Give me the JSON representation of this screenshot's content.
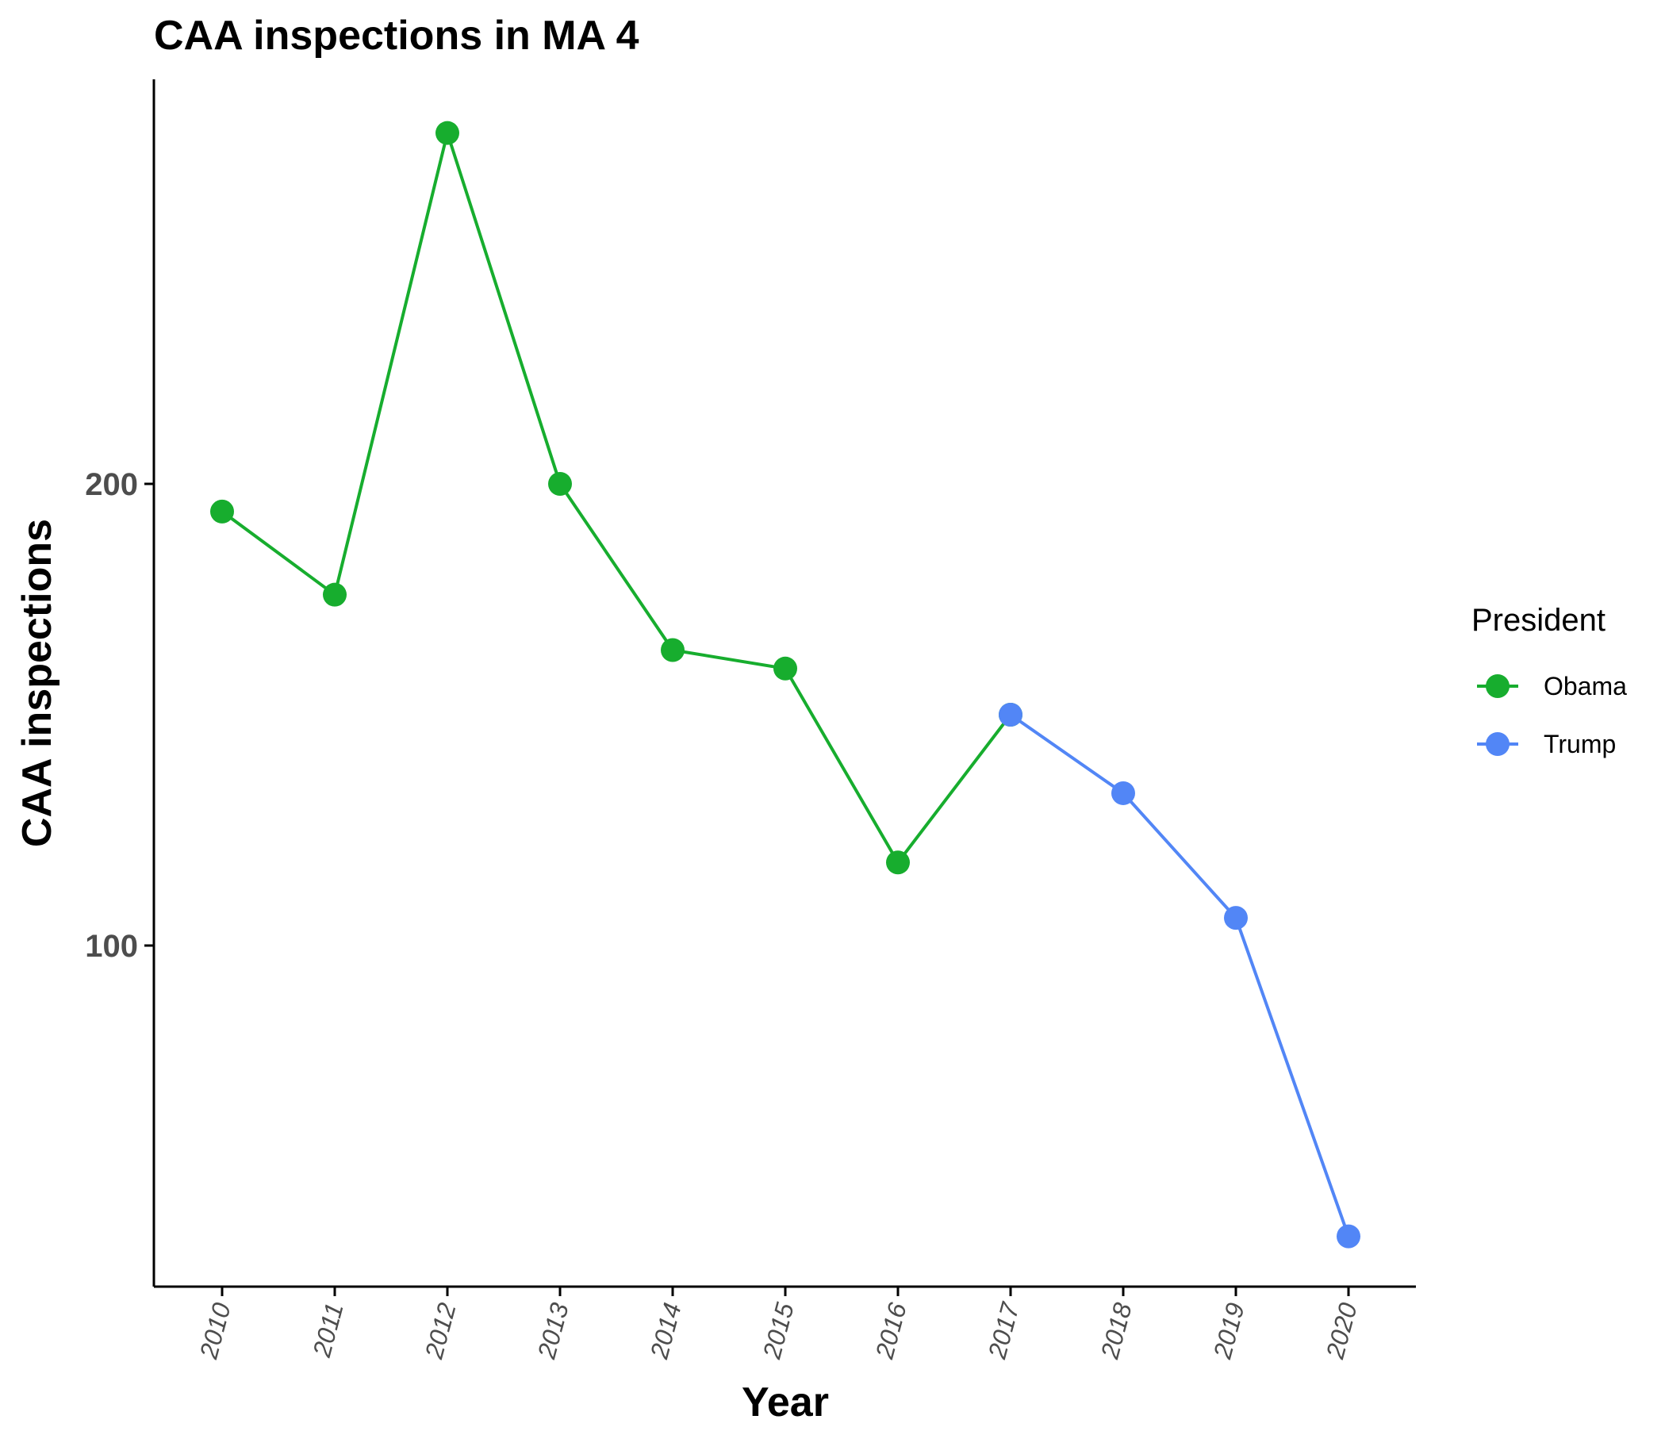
{
  "chart_data": {
    "type": "line",
    "title": "CAA inspections in MA 4",
    "xlabel": "Year",
    "ylabel": "CAA inspections",
    "categories": [
      "2010",
      "2011",
      "2012",
      "2013",
      "2014",
      "2015",
      "2016",
      "2017",
      "2018",
      "2019",
      "2020"
    ],
    "y_ticks": [
      100,
      200
    ],
    "y_tick_labels": [
      "100",
      "200"
    ],
    "ylim": [
      23,
      285
    ],
    "grid": false,
    "legend": {
      "title": "President",
      "position": "right",
      "entries": [
        {
          "label": "Obama",
          "color": "#17ad2e"
        },
        {
          "label": "Trump",
          "color": "#5286f6"
        }
      ]
    },
    "series": [
      {
        "name": "Obama",
        "color": "#17ad2e",
        "x": [
          "2010",
          "2011",
          "2012",
          "2013",
          "2014",
          "2015",
          "2016",
          "2017"
        ],
        "values": [
          194,
          176,
          276,
          200,
          164,
          160,
          118,
          150
        ]
      },
      {
        "name": "Trump",
        "color": "#5286f6",
        "x": [
          "2017",
          "2018",
          "2019",
          "2020"
        ],
        "values": [
          150,
          133,
          106,
          37
        ]
      }
    ]
  }
}
